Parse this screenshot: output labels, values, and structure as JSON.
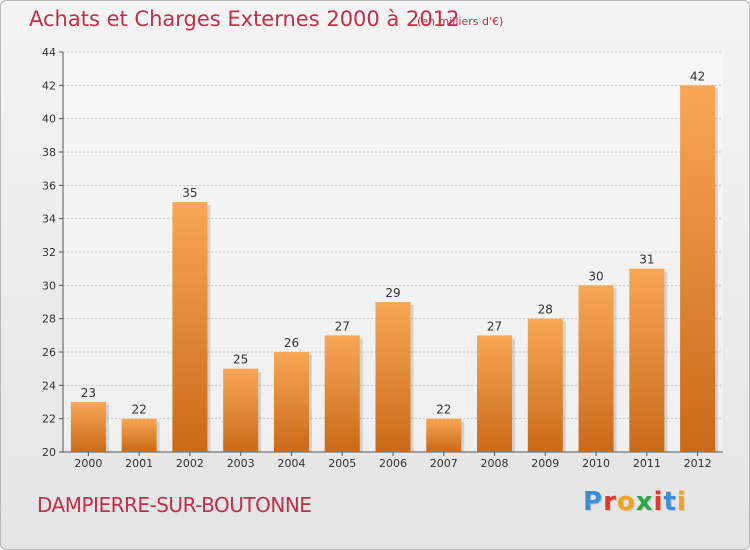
{
  "chart_data": {
    "type": "bar",
    "title": "Achats et Charges Externes 2000 à 2012",
    "subtitle": "(en milliers d'€)",
    "categories": [
      "2000",
      "2001",
      "2002",
      "2003",
      "2004",
      "2005",
      "2006",
      "2007",
      "2008",
      "2009",
      "2010",
      "2011",
      "2012"
    ],
    "values": [
      23,
      22,
      35,
      25,
      26,
      27,
      29,
      22,
      27,
      28,
      30,
      31,
      42
    ],
    "ylim": [
      20,
      44
    ],
    "yticks": [
      20,
      22,
      24,
      26,
      28,
      30,
      32,
      34,
      36,
      38,
      40,
      42,
      44
    ],
    "grid": true,
    "legend": "none",
    "bar_color": "#e88a2e",
    "bar_color_light": "#f7a756",
    "bar_color_dark": "#c96a18"
  },
  "footer": {
    "town": "DAMPIERRE-SUR-BOUTONNE",
    "brand_letters": [
      "P",
      "r",
      "o",
      "x",
      "i",
      "t",
      "i"
    ],
    "brand_colors": [
      "#3a8fd6",
      "#e23a2a",
      "#f0a21e",
      "#2da646",
      "#e23a2a",
      "#3a8fd6",
      "#f0a21e"
    ]
  }
}
